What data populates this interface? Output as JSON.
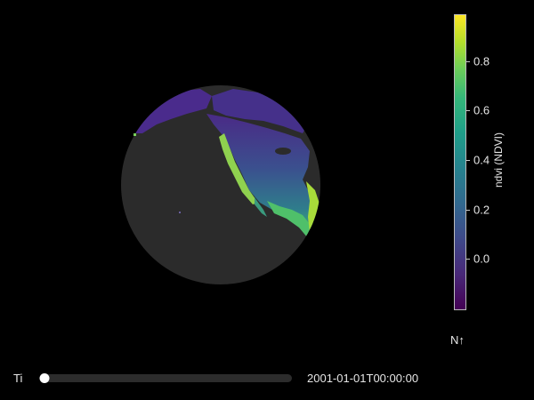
{
  "map": {
    "projection": "orthographic globe",
    "ocean_color": "#2b2b2b",
    "background_color": "#000000",
    "land_region": "North America"
  },
  "colorbar": {
    "title": "ndvi (NDVI)",
    "colormap": "viridis",
    "ticks": [
      "0.0",
      "0.2",
      "0.4",
      "0.6",
      "0.8"
    ],
    "tick_values": [
      0.0,
      0.2,
      0.4,
      0.6,
      0.8
    ],
    "range": [
      -0.2,
      0.99
    ]
  },
  "compass": {
    "label": "N↑"
  },
  "time_slider": {
    "label": "Ti",
    "value": "2001-01-01T00:00:00",
    "position": 0
  }
}
